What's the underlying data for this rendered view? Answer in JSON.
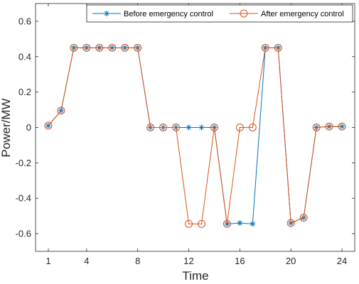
{
  "chart_data": {
    "type": "line",
    "xlabel": "Time",
    "ylabel": "Power/MW",
    "xlim": [
      0,
      25
    ],
    "ylim": [
      -0.7,
      0.7
    ],
    "xticks": [
      1,
      4,
      8,
      12,
      16,
      20,
      24
    ],
    "yticks": [
      -0.6,
      -0.4,
      -0.2,
      0,
      0.2,
      0.4,
      0.6
    ],
    "xtick_labels": [
      "1",
      "4",
      "8",
      "12",
      "16",
      "20",
      "24"
    ],
    "ytick_labels": [
      "-0.6",
      "-0.4",
      "-0.2",
      "0",
      "0.2",
      "0.4",
      "0.6"
    ],
    "grid": false,
    "legend_position": "top-right",
    "x": [
      1,
      2,
      3,
      4,
      5,
      6,
      7,
      8,
      9,
      10,
      11,
      12,
      13,
      14,
      15,
      16,
      17,
      18,
      19,
      20,
      21,
      22,
      23,
      24
    ],
    "series": [
      {
        "name": "Before emergency control",
        "color": "#0072BD",
        "marker": "asterisk",
        "values": [
          0.01,
          0.095,
          0.45,
          0.45,
          0.45,
          0.45,
          0.45,
          0.45,
          0.0,
          0.0,
          0.0,
          0.0,
          0.0,
          0.0,
          -0.545,
          -0.54,
          -0.545,
          0.45,
          0.45,
          -0.54,
          -0.51,
          0.0,
          0.005,
          0.005
        ]
      },
      {
        "name": "After emergency control",
        "color": "#D95319",
        "marker": "circle",
        "values": [
          0.01,
          0.095,
          0.45,
          0.45,
          0.45,
          0.45,
          0.45,
          0.45,
          0.0,
          0.0,
          0.0,
          -0.545,
          -0.545,
          0.0,
          -0.545,
          0.0,
          0.0,
          0.45,
          0.45,
          -0.54,
          -0.51,
          0.0,
          0.005,
          0.005
        ]
      }
    ]
  }
}
